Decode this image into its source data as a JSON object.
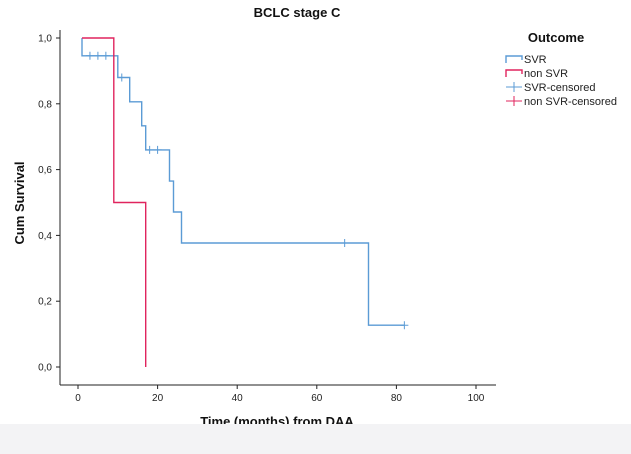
{
  "chart_data": {
    "type": "line",
    "subtype": "kaplan-meier",
    "title": "BCLC stage C",
    "xlabel": "Time (months) from DAA",
    "ylabel": "Cum Survival",
    "xlim": [
      0,
      105
    ],
    "ylim": [
      0,
      1.0
    ],
    "x_ticks": [
      0,
      20,
      40,
      60,
      80,
      100
    ],
    "x_tick_labels": [
      "0",
      "20",
      "40",
      "60",
      "80",
      "100"
    ],
    "y_ticks": [
      0,
      0.2,
      0.4,
      0.6,
      0.8,
      1.0
    ],
    "y_tick_labels": [
      "0,0",
      "0,2",
      "0,4",
      "0,6",
      "0,8",
      "1,0"
    ],
    "grid": false,
    "legend": {
      "title": "Outcome",
      "placement": "right",
      "entries": [
        {
          "label": "SVR",
          "symbol": "step",
          "color": "#5b9bd5"
        },
        {
          "label": "non SVR",
          "symbol": "step",
          "color": "#e0245e"
        },
        {
          "label": "SVR-censored",
          "symbol": "plus",
          "color": "#5b9bd5"
        },
        {
          "label": "non SVR-censored",
          "symbol": "plus",
          "color": "#e0245e"
        }
      ]
    },
    "series": [
      {
        "name": "SVR",
        "color": "#5b9bd5",
        "steps": [
          [
            1,
            1.0
          ],
          [
            1,
            0.946
          ],
          [
            10,
            0.946
          ],
          [
            10,
            0.88
          ],
          [
            13,
            0.88
          ],
          [
            13,
            0.806
          ],
          [
            16,
            0.806
          ],
          [
            16,
            0.733
          ],
          [
            17,
            0.733
          ],
          [
            17,
            0.66
          ],
          [
            23,
            0.66
          ],
          [
            23,
            0.565
          ],
          [
            24,
            0.565
          ],
          [
            24,
            0.471
          ],
          [
            26,
            0.471
          ],
          [
            26,
            0.377
          ],
          [
            73,
            0.377
          ],
          [
            73,
            0.127
          ],
          [
            82,
            0.127
          ]
        ],
        "censored": [
          [
            3,
            0.946
          ],
          [
            5,
            0.946
          ],
          [
            7,
            0.946
          ],
          [
            11,
            0.88
          ],
          [
            18,
            0.66
          ],
          [
            20,
            0.66
          ],
          [
            67,
            0.377
          ],
          [
            82,
            0.127
          ]
        ]
      },
      {
        "name": "non SVR",
        "color": "#e0245e",
        "steps": [
          [
            1,
            1.0
          ],
          [
            9,
            1.0
          ],
          [
            9,
            0.5
          ],
          [
            17,
            0.5
          ],
          [
            17,
            0.0
          ]
        ],
        "censored": []
      }
    ]
  }
}
